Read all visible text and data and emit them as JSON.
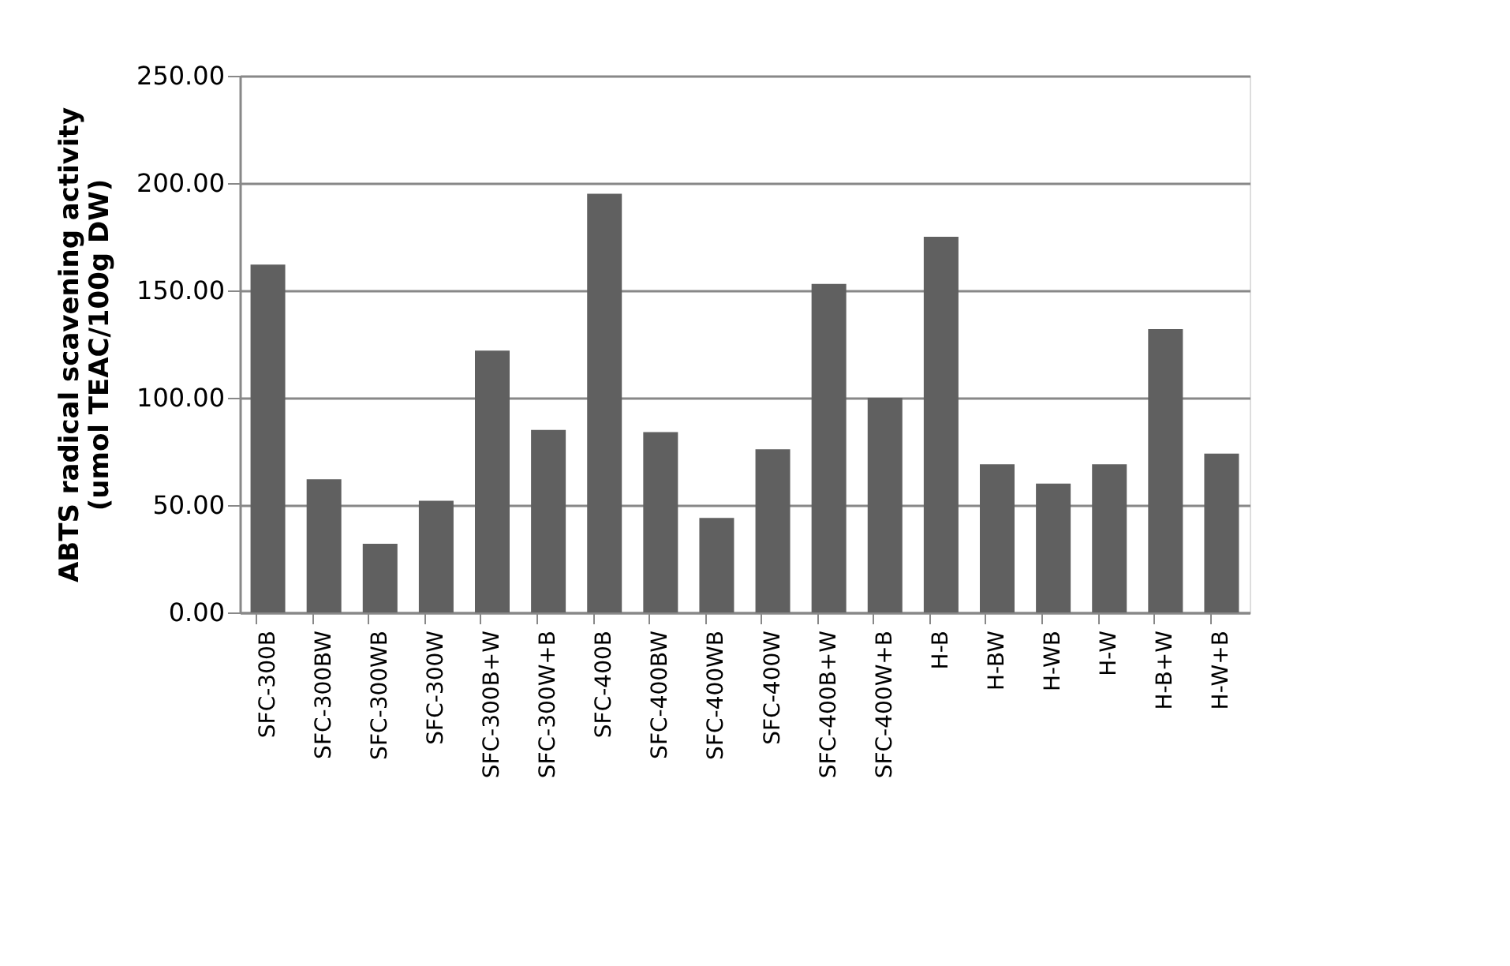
{
  "chart_data": {
    "type": "bar",
    "ylabel": [
      "ABTS radical scavening activity",
      "(umol TEAC/100g DW)"
    ],
    "categories": [
      "SFC-300B",
      "SFC-300BW",
      "SFC-300WB",
      "SFC-300W",
      "SFC-300B+W",
      "SFC-300W+B",
      "SFC-400B",
      "SFC-400BW",
      "SFC-400WB",
      "SFC-400W",
      "SFC-400B+W",
      "SFC-400W+B",
      "H-B",
      "H-BW",
      "H-WB",
      "H-W",
      "H-B+W",
      "H-W+B"
    ],
    "values": [
      162,
      62,
      32,
      52,
      122,
      85,
      195,
      84,
      44,
      76,
      153,
      100,
      175,
      69,
      60,
      69,
      132,
      74
    ],
    "color": "#606060",
    "ylim": [
      0,
      250
    ],
    "yticks": [
      {
        "value": 0,
        "label": "0.00"
      },
      {
        "value": 50,
        "label": "50.00"
      },
      {
        "value": 100,
        "label": "100.00"
      },
      {
        "value": 150,
        "label": "150.00"
      },
      {
        "value": 200,
        "label": "200.00"
      },
      {
        "value": 250,
        "label": "250.00"
      }
    ],
    "grid": "y"
  }
}
